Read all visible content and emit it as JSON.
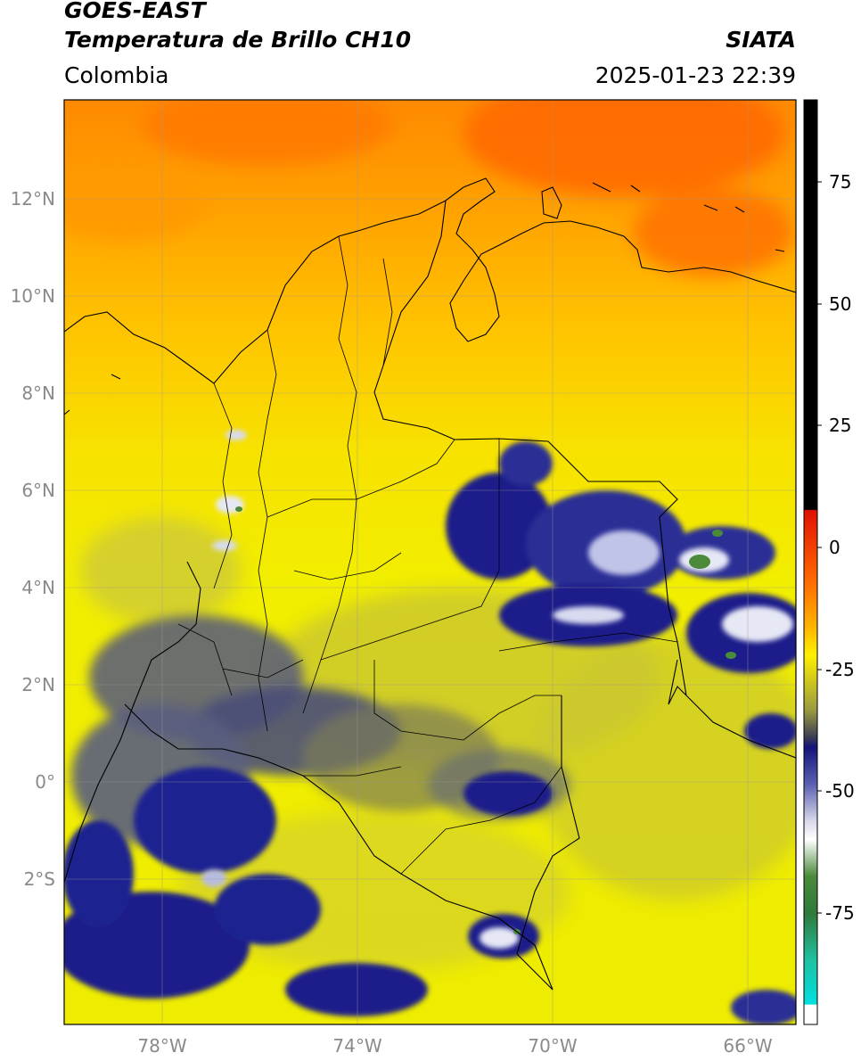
{
  "header": {
    "satellite": "GOES-EAST",
    "product": "Temperatura de Brillo CH10",
    "region": "Colombia",
    "agency": "SIATA",
    "datetime": "2025-01-23 22:39"
  },
  "map": {
    "lon_range": [
      -80,
      -65
    ],
    "lat_range": [
      -5,
      14
    ],
    "lat_ticks": [
      {
        "value": 12,
        "label": "12°N"
      },
      {
        "value": 10,
        "label": "10°N"
      },
      {
        "value": 8,
        "label": "8°N"
      },
      {
        "value": 6,
        "label": "6°N"
      },
      {
        "value": 4,
        "label": "4°N"
      },
      {
        "value": 2,
        "label": "2°N"
      },
      {
        "value": 0,
        "label": "0°"
      },
      {
        "value": -2,
        "label": "2°S"
      }
    ],
    "lon_ticks": [
      {
        "value": -78,
        "label": "78°W"
      },
      {
        "value": -74,
        "label": "74°W"
      },
      {
        "value": -70,
        "label": "70°W"
      },
      {
        "value": -66,
        "label": "66°W"
      }
    ],
    "colors": {
      "warm_top": "#ff7a00",
      "yellow": "#f2ee00",
      "olive": "#c9c630",
      "cold_gray": "#5c6078",
      "cold_navy": "#1a1f8a",
      "very_cold": "#e6e8f5"
    }
  },
  "colorbar": {
    "range": [
      -100,
      90
    ],
    "ticks": [
      {
        "value": 75,
        "label": "75"
      },
      {
        "value": 50,
        "label": "50"
      },
      {
        "value": 25,
        "label": "25"
      },
      {
        "value": 0,
        "label": "0"
      },
      {
        "value": -25,
        "label": "-25"
      },
      {
        "value": -50,
        "label": "-50"
      },
      {
        "value": -75,
        "label": "-75"
      }
    ]
  }
}
